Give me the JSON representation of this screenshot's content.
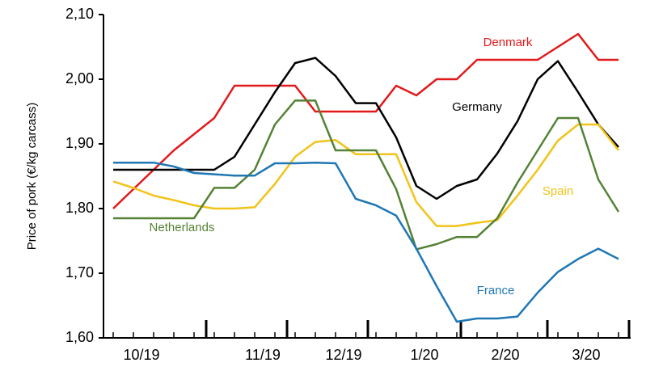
{
  "chart_data": {
    "type": "line",
    "y_label": "Price of pork  (€/kg carcass)",
    "categories": [
      null,
      "10/19",
      null,
      null,
      null,
      null,
      null,
      "11/19",
      null,
      null,
      null,
      "12/19",
      null,
      null,
      null,
      "1/20",
      null,
      null,
      null,
      "2/20",
      null,
      null,
      null,
      "3/20",
      null,
      null
    ],
    "ylim": [
      1.6,
      2.1
    ],
    "yticks": [
      {
        "value": 1.6,
        "label": "1,60"
      },
      {
        "value": 1.7,
        "label": "1,70"
      },
      {
        "value": 1.8,
        "label": "1,80"
      },
      {
        "value": 1.9,
        "label": "1,90"
      },
      {
        "value": 2.0,
        "label": "2,00"
      },
      {
        "value": 2.1,
        "label": "2,10"
      }
    ],
    "grid": false,
    "series": [
      {
        "name": "Denmark",
        "color": "#e2191b",
        "values": [
          1.8,
          1.83,
          1.86,
          1.89,
          1.915,
          1.94,
          1.99,
          1.99,
          1.99,
          1.99,
          1.95,
          1.95,
          1.95,
          1.95,
          1.99,
          1.975,
          2.0,
          2.0,
          2.03,
          2.03,
          2.03,
          2.03,
          2.05,
          2.07,
          2.03,
          2.03
        ]
      },
      {
        "name": "Germany",
        "color": "#000000",
        "values": [
          1.86,
          1.86,
          1.86,
          1.86,
          1.86,
          1.86,
          1.88,
          1.93,
          1.98,
          2.025,
          2.033,
          2.005,
          1.963,
          1.963,
          1.91,
          1.835,
          1.815,
          1.835,
          1.845,
          1.885,
          1.935,
          2.0,
          2.028,
          1.98,
          1.93,
          1.895
        ]
      },
      {
        "name": "Spain",
        "color": "#f2c318",
        "values": [
          1.842,
          1.832,
          1.82,
          1.813,
          1.805,
          1.8,
          1.8,
          1.802,
          1.838,
          1.88,
          1.903,
          1.906,
          1.884,
          1.884,
          1.884,
          1.81,
          1.773,
          1.773,
          1.778,
          1.782,
          1.82,
          1.86,
          1.905,
          1.93,
          1.93,
          1.89
        ]
      },
      {
        "name": "Netherlands",
        "color": "#548235",
        "values": [
          1.785,
          1.785,
          1.785,
          1.785,
          1.785,
          1.832,
          1.832,
          1.86,
          1.93,
          1.967,
          1.967,
          1.89,
          1.89,
          1.89,
          1.83,
          1.737,
          1.745,
          1.756,
          1.756,
          1.785,
          1.84,
          1.89,
          1.94,
          1.94,
          1.845,
          1.795
        ]
      },
      {
        "name": "France",
        "color": "#1f77b4",
        "values": [
          1.871,
          1.871,
          1.871,
          1.865,
          1.855,
          1.853,
          1.851,
          1.851,
          1.87,
          1.87,
          1.871,
          1.87,
          1.815,
          1.805,
          1.789,
          1.738,
          1.68,
          1.625,
          1.63,
          1.63,
          1.633,
          1.67,
          1.702,
          1.722,
          1.738,
          1.722
        ]
      }
    ]
  }
}
